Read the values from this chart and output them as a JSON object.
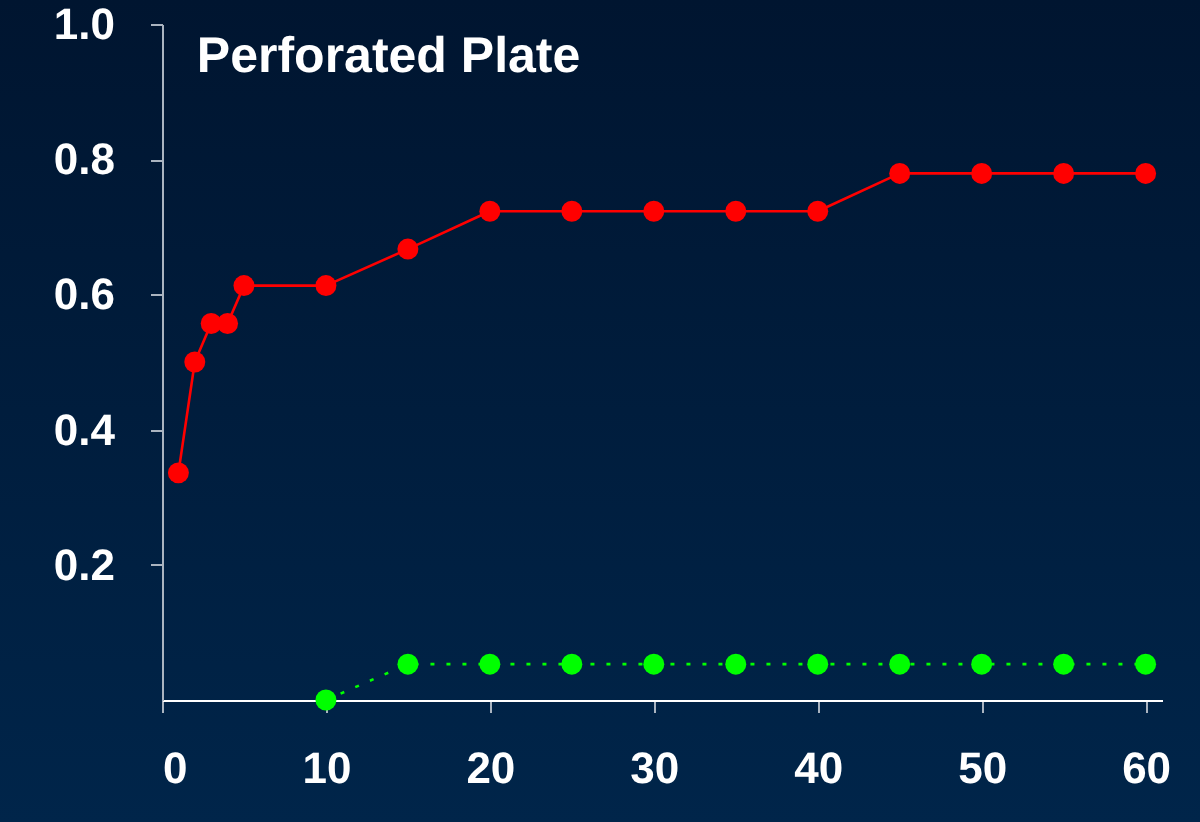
{
  "chart_data": {
    "type": "line",
    "title": "Perforated Plate",
    "xlim": [
      0,
      61
    ],
    "xticks": [
      0,
      10,
      20,
      30,
      40,
      50,
      60
    ],
    "ylim": [
      0,
      1
    ],
    "yticks": [
      0.2,
      0.4,
      0.6,
      0.8,
      {
        "value": 1,
        "label": "1.0"
      }
    ],
    "grid": false,
    "marker": "circle",
    "series": [
      {
        "color": "#ff0000",
        "line_style": "solid",
        "x": [
          1,
          2,
          3,
          4,
          5,
          10,
          15,
          20,
          25,
          30,
          35,
          40,
          45,
          50,
          55,
          60
        ],
        "values": [
          0.336,
          0.5,
          0.557,
          0.557,
          0.613,
          0.613,
          0.667,
          0.723,
          0.723,
          0.723,
          0.723,
          0.723,
          0.779,
          0.779,
          0.779,
          0.779
        ]
      },
      {
        "color": "#00ff00",
        "line_style": "dotted",
        "x": [
          10,
          15,
          20,
          25,
          30,
          35,
          40,
          45,
          50,
          55,
          60
        ],
        "values": [
          0,
          0.053,
          0.053,
          0.053,
          0.053,
          0.053,
          0.053,
          0.053,
          0.053,
          0.053,
          0.053
        ]
      }
    ]
  }
}
